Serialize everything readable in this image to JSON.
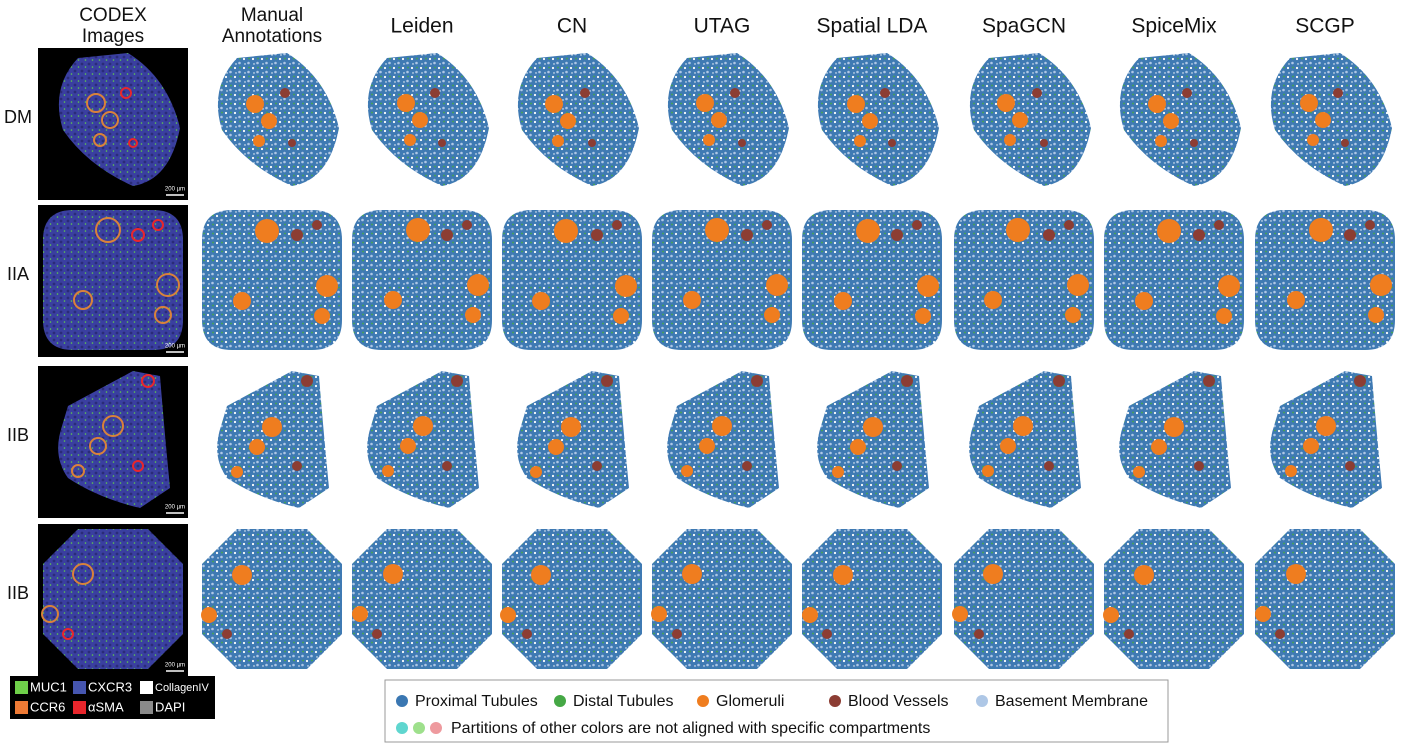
{
  "column_headers": [
    [
      "CODEX",
      "Images"
    ],
    [
      "Manual",
      "Annotations"
    ],
    [
      "Leiden"
    ],
    [
      "CN"
    ],
    [
      "UTAG"
    ],
    [
      "Spatial LDA"
    ],
    [
      "SpaGCN"
    ],
    [
      "SpiceMix"
    ],
    [
      "SCGP"
    ]
  ],
  "row_labels": [
    "DM",
    "IIA",
    "IIB",
    "IIB"
  ],
  "scale_bar": "200 µm",
  "channel_legend": [
    {
      "name": "MUC1",
      "color": "#6fd04a"
    },
    {
      "name": "CXCR3",
      "color": "#4656b0"
    },
    {
      "name": "CollagenIV",
      "color": "#ffffff"
    },
    {
      "name": "CCR6",
      "color": "#ee7a35"
    },
    {
      "name": "αSMA",
      "color": "#e8262c"
    },
    {
      "name": "DAPI",
      "color": "#8a8a8a"
    }
  ],
  "compartment_legend": [
    {
      "name": "Proximal Tubules",
      "color": "#3a77b2"
    },
    {
      "name": "Distal Tubules",
      "color": "#45a845"
    },
    {
      "name": "Glomeruli",
      "color": "#ef7d1f"
    },
    {
      "name": "Blood Vessels",
      "color": "#8c3d33"
    },
    {
      "name": "Basement Membrane",
      "color": "#aec7e6"
    }
  ],
  "other_colors": [
    "#5fd6cf",
    "#9ee08c",
    "#ee9a9e"
  ],
  "other_note": "Partitions of other colors are not aligned with specific compartments"
}
